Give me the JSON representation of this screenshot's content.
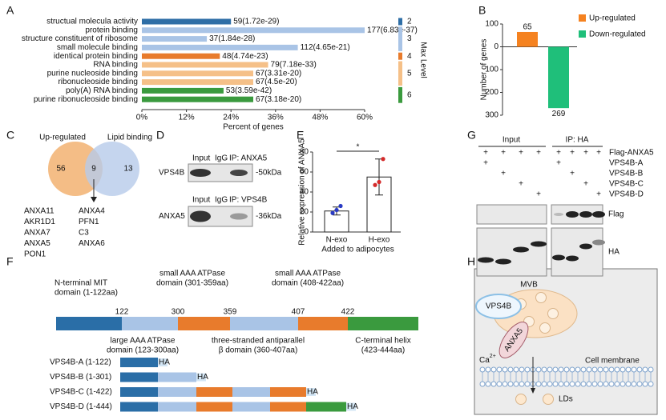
{
  "panel_labels": [
    "A",
    "B",
    "C",
    "D",
    "E",
    "F",
    "G",
    "H"
  ],
  "chart_data": [
    {
      "type": "bar",
      "orientation": "horizontal",
      "categories": [
        "structual molecula activity",
        "protein binding",
        "structure constituent of ribosome",
        "small molecule binding",
        "identical protein binding",
        "RNA binding",
        "purine nucleoside binding",
        "ribonucleoside binding",
        "poly(A) RNA binding",
        "purine ribonucleoside binding"
      ],
      "values": [
        24,
        60,
        17.5,
        42,
        21,
        34,
        30,
        30,
        22,
        30
      ],
      "bar_labels": [
        "59(1.72e-29)",
        "177(6.83e-37)",
        "37(1.84e-28)",
        "112(4.65e-21)",
        "48(4.74e-23)",
        "79(7.18e-33)",
        "67(3.31e-20)",
        "67(4.5e-20)",
        "53(3.59e-42)",
        "67(3.18e-20)"
      ],
      "colors": [
        "#2e6ea6",
        "#a9c4e6",
        "#a9c4e6",
        "#a9c4e6",
        "#e87b2c",
        "#f5c088",
        "#f5c088",
        "#f5c088",
        "#3a9a3e",
        "#3a9a3e"
      ],
      "xlabel": "Percent of genes",
      "xlim": [
        0,
        60
      ],
      "xticks": [
        {
          "value": 0,
          "label": "0%"
        },
        {
          "value": 12,
          "label": "12%"
        },
        {
          "value": 24,
          "label": "24%"
        },
        {
          "value": 36,
          "label": "36%"
        },
        {
          "value": 48,
          "label": "48%"
        },
        {
          "value": 60,
          "label": "60%"
        }
      ],
      "legend": {
        "title": "Max Level",
        "levels": [
          2,
          3,
          4,
          5,
          6
        ],
        "colors": [
          "#2e6ea6",
          "#a9c4e6",
          "#e87b2c",
          "#f5c088",
          "#3a9a3e"
        ]
      }
    },
    {
      "type": "bar",
      "ylabel": "Number of genes",
      "series": [
        {
          "name": "Up-regulated",
          "color": "#f58220",
          "values": [
            65
          ],
          "value_labels": [
            "65"
          ]
        },
        {
          "name": "Down-regulated",
          "color": "#1fbf7a",
          "values": [
            -269
          ],
          "value_labels": [
            "269"
          ]
        }
      ],
      "ylim": [
        -300,
        100
      ],
      "yticks": [
        {
          "value": 100,
          "label": "100"
        },
        0,
        {
          "value": -100,
          "label": "100"
        },
        {
          "value": -200,
          "label": "200"
        },
        {
          "value": -300,
          "label": "300"
        }
      ]
    },
    {
      "type": "bar",
      "categories": [
        "N-exo",
        "H-exo"
      ],
      "values": [
        21,
        55
      ],
      "errors": [
        4,
        18
      ],
      "points": [
        [
          19,
          22,
          26
        ],
        [
          47,
          50,
          73
        ]
      ],
      "point_colors": [
        "#2a3bc4",
        "#d42a2a"
      ],
      "ylabel": "Relative expression of ANXA5",
      "xlabel": "Added to adipocytes",
      "significance": "*",
      "ylim": [
        0,
        80
      ],
      "yticks": [
        0,
        20,
        40,
        60,
        80
      ]
    }
  ],
  "panels": {
    "C": {
      "sets": [
        "Up-regulated",
        "Lipid binding"
      ],
      "counts": [
        "56",
        "9",
        "13"
      ],
      "genes_left": [
        {
          "name": "ANXA11"
        },
        {
          "name": "AKR1D1"
        },
        {
          "name": "ANXA7"
        },
        {
          "name": "ANXA5",
          "color": "#c0282d"
        },
        {
          "name": "PON1"
        }
      ],
      "genes_right": [
        {
          "name": "ANXA4"
        },
        {
          "name": "PFN1"
        },
        {
          "name": "C3"
        },
        {
          "name": "ANXA6"
        }
      ]
    },
    "D": {
      "blots": [
        {
          "lanes": [
            "Input",
            "IgG",
            "IP: ANXA5"
          ],
          "protein": "VPS4B",
          "size": "-50kDa"
        },
        {
          "lanes": [
            "Input",
            "IgG",
            "IP: VPS4B"
          ],
          "protein": "ANXA5",
          "size": "-36kDa"
        }
      ]
    },
    "F": {
      "domains_top": [
        [
          "N-terminal MIT",
          "domain (1-122aa)"
        ],
        [
          "small AAA ATPase",
          "domain (301-359aa)"
        ],
        [
          "small AAA ATPase",
          "domain (408-422aa)"
        ]
      ],
      "domains_bottom": [
        [
          "large AAA ATPase",
          "domain (123-300aa)"
        ],
        [
          "three-stranded antiparallel",
          "β domain (360-407aa)"
        ],
        [
          "C-terminal helix",
          "(423-444aa)"
        ]
      ],
      "boundaries": [
        "122",
        "300",
        "359",
        "407",
        "422"
      ],
      "constructs": [
        "VPS4B-A (1-122)",
        "VPS4B-B (1-301)",
        "VPS4B-C (1-422)",
        "VPS4B-D (1-444)"
      ],
      "tag": "HA"
    },
    "G": {
      "groups": [
        "Input",
        "IP: HA"
      ],
      "rows": [
        "Flag-ANXA5",
        "VPS4B-A",
        "VPS4B-B",
        "VPS4B-C",
        "VPS4B-D"
      ],
      "marks": [
        [
          "+",
          "+",
          "+",
          "+",
          "+",
          "+",
          "+",
          "+"
        ],
        [
          "+",
          null,
          null,
          null,
          "+",
          null,
          null,
          null
        ],
        [
          null,
          "+",
          null,
          null,
          null,
          "+",
          null,
          null
        ],
        [
          null,
          null,
          "+",
          null,
          null,
          null,
          "+",
          null
        ],
        [
          null,
          null,
          null,
          "+",
          null,
          null,
          null,
          "+"
        ]
      ],
      "blots": [
        "Flag",
        "HA"
      ]
    },
    "H": {
      "mvb": "MVB",
      "vps4b": "VPS4B",
      "anxa5": "ANXA5",
      "calcium": {
        "text": "Ca",
        "charge": "2+"
      },
      "membrane": "Cell membrane",
      "lds": "LDs"
    }
  }
}
